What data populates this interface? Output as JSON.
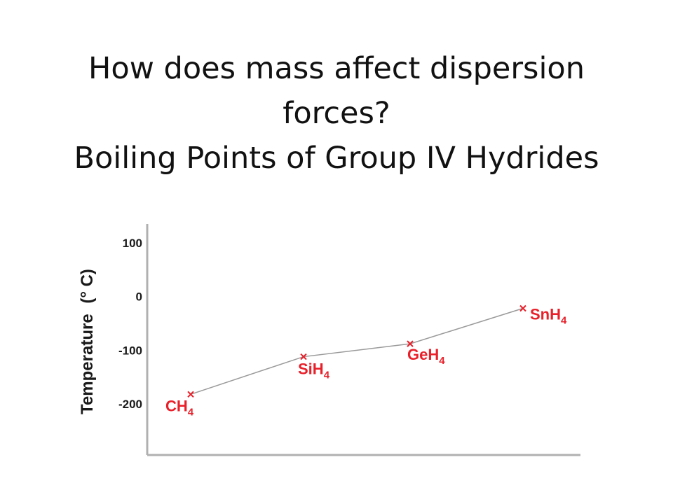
{
  "slide": {
    "title_line1": "How does mass affect dispersion",
    "title_line2": "forces?",
    "title_line3": "Boiling Points of Group IV Hydrides"
  },
  "chart_data": {
    "type": "line",
    "categories": [
      "CH4",
      "SiH4",
      "GeH4",
      "SnH4"
    ],
    "point_labels": [
      {
        "main": "CH",
        "sub": "4"
      },
      {
        "main": "SiH",
        "sub": "4"
      },
      {
        "main": "GeH",
        "sub": "4"
      },
      {
        "main": "SnH",
        "sub": "4"
      }
    ],
    "values": [
      -182,
      -112,
      -88,
      -22
    ],
    "ylabel": "Temperature (°C)",
    "ylabel_main": "Temperature",
    "ylabel_unit": "(° C)",
    "yticks": [
      100,
      0,
      -100,
      -200
    ],
    "ylim": [
      -295,
      135
    ],
    "grid": false,
    "line_color": "#9a9a9a",
    "marker_color": "#e8202a",
    "axis_color": "#b0b0b0"
  }
}
